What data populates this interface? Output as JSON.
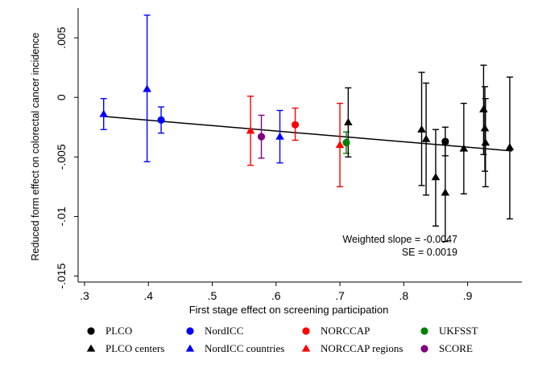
{
  "chart_data": {
    "type": "scatter",
    "title": "",
    "xlabel": "First stage effect on screening participation",
    "ylabel": "Reduced form effect on colorectal cancer incidence",
    "xlim": [
      0.29,
      0.985
    ],
    "ylim": [
      -0.0155,
      0.0075
    ],
    "x_ticks": [
      0.3,
      0.4,
      0.5,
      0.6,
      0.7,
      0.8,
      0.9
    ],
    "x_tick_labels": [
      ".3",
      ".4",
      ".5",
      ".6",
      ".7",
      ".8",
      ".9"
    ],
    "y_ticks": [
      0.005,
      0,
      -0.005,
      -0.01,
      -0.015
    ],
    "y_tick_labels": [
      ".005",
      "0",
      "-.005",
      "-.01",
      "-.015"
    ],
    "grid": false,
    "legend_position": "bottom",
    "annotation": {
      "line1": "Weighted slope = -0.0047",
      "line2": "SE = 0.0019"
    },
    "fit_line": {
      "x": [
        0.33,
        0.97
      ],
      "y": [
        -0.0016,
        -0.0045
      ]
    },
    "series": [
      {
        "name": "PLCO",
        "marker": "circle",
        "color": "#000000",
        "points": [
          {
            "x": 0.865,
            "y": -0.0037,
            "lo": -0.0049,
            "hi": -0.0025
          }
        ]
      },
      {
        "name": "NordICC",
        "marker": "circle",
        "color": "#0000ff",
        "points": [
          {
            "x": 0.42,
            "y": -0.0019,
            "lo": -0.003,
            "hi": -0.0008
          }
        ]
      },
      {
        "name": "NORCCAP",
        "marker": "circle",
        "color": "#ff0000",
        "points": [
          {
            "x": 0.63,
            "y": -0.0023,
            "lo": -0.0036,
            "hi": -0.0009
          }
        ]
      },
      {
        "name": "UKFSST",
        "marker": "circle",
        "color": "#008000",
        "points": [
          {
            "x": 0.71,
            "y": -0.0038,
            "lo": -0.0047,
            "hi": -0.0029
          }
        ]
      },
      {
        "name": "PLCO centers",
        "marker": "triangle",
        "color": "#000000",
        "points": [
          {
            "x": 0.713,
            "y": -0.0021,
            "lo": -0.005,
            "hi": 0.0008
          },
          {
            "x": 0.828,
            "y": -0.0027,
            "lo": -0.0074,
            "hi": 0.0021
          },
          {
            "x": 0.835,
            "y": -0.0035,
            "lo": -0.0082,
            "hi": 0.0012
          },
          {
            "x": 0.85,
            "y": -0.0067,
            "lo": -0.0108,
            "hi": -0.0027
          },
          {
            "x": 0.865,
            "y": -0.008,
            "lo": -0.0121,
            "hi": -0.0039
          },
          {
            "x": 0.894,
            "y": -0.0043,
            "lo": -0.0081,
            "hi": -0.0005
          },
          {
            "x": 0.925,
            "y": -0.001,
            "lo": -0.0048,
            "hi": 0.0027
          },
          {
            "x": 0.927,
            "y": -0.0026,
            "lo": -0.0062,
            "hi": 0.0009
          },
          {
            "x": 0.928,
            "y": -0.0038,
            "lo": -0.0075,
            "hi": -0.0001
          },
          {
            "x": 0.966,
            "y": -0.0042,
            "lo": -0.0102,
            "hi": 0.0017
          }
        ]
      },
      {
        "name": "NordICC countries",
        "marker": "triangle",
        "color": "#0000ff",
        "points": [
          {
            "x": 0.33,
            "y": -0.0014,
            "lo": -0.0027,
            "hi": -0.0001
          },
          {
            "x": 0.398,
            "y": 0.0007,
            "lo": -0.0054,
            "hi": 0.0069
          },
          {
            "x": 0.606,
            "y": -0.0033,
            "lo": -0.0055,
            "hi": -0.0011
          }
        ]
      },
      {
        "name": "NORCCAP regions",
        "marker": "triangle",
        "color": "#ff0000",
        "points": [
          {
            "x": 0.56,
            "y": -0.0028,
            "lo": -0.0057,
            "hi": 0.0001
          },
          {
            "x": 0.7,
            "y": -0.004,
            "lo": -0.0075,
            "hi": -0.0005
          }
        ]
      },
      {
        "name": "SCORE",
        "marker": "circle",
        "color": "#800080",
        "points": [
          {
            "x": 0.577,
            "y": -0.0033,
            "lo": -0.0051,
            "hi": -0.0015
          }
        ]
      }
    ],
    "legend": [
      {
        "series": 0,
        "row": 0,
        "col": 0
      },
      {
        "series": 1,
        "row": 0,
        "col": 1
      },
      {
        "series": 2,
        "row": 0,
        "col": 2
      },
      {
        "series": 3,
        "row": 0,
        "col": 3
      },
      {
        "series": 4,
        "row": 1,
        "col": 0
      },
      {
        "series": 5,
        "row": 1,
        "col": 1
      },
      {
        "series": 6,
        "row": 1,
        "col": 2
      },
      {
        "series": 7,
        "row": 1,
        "col": 3
      }
    ]
  }
}
